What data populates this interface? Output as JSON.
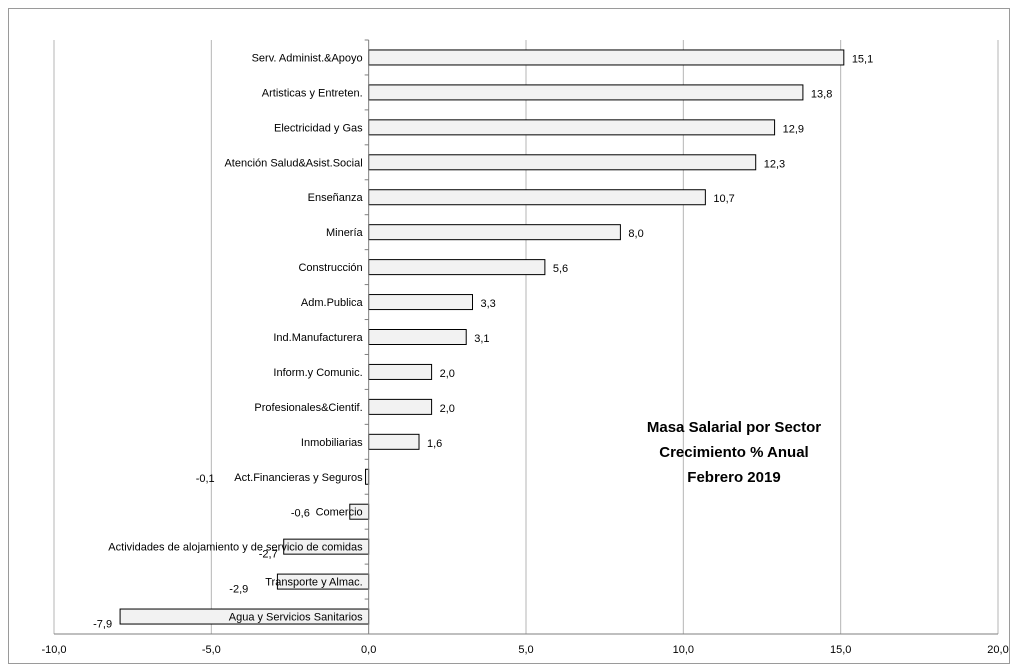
{
  "chart_data": {
    "type": "bar",
    "orientation": "horizontal",
    "title": [
      "Masa Salarial por Sector",
      "Crecimiento % Anual",
      "Febrero 2019"
    ],
    "xlabel": "",
    "ylabel": "",
    "xlim": [
      -10,
      20
    ],
    "x_ticks": [
      "-10,0",
      "-5,0",
      "0,0",
      "5,0",
      "10,0",
      "15,0",
      "20,0"
    ],
    "grid": "vertical",
    "bar_color": "#f2f2f2",
    "bar_edge_color": "#000000",
    "categories": [
      "Serv. Administ.&Apoyo",
      "Artisticas y Entreten.",
      "Electricidad y Gas",
      "Atención Salud&Asist.Social",
      "Enseñanza",
      "Minería",
      "Construcción",
      "Adm.Publica",
      "Ind.Manufacturera",
      "Inform.y Comunic.",
      "Profesionales&Cientif.",
      "Inmobiliarias",
      "Act.Financieras y Seguros",
      "Comercio",
      "Actividades de alojamiento y de servicio de comidas",
      "Transporte y Almac.",
      "Agua y Servicios Sanitarios"
    ],
    "values": [
      15.1,
      13.8,
      12.9,
      12.3,
      10.7,
      8.0,
      5.6,
      3.3,
      3.1,
      2.0,
      2.0,
      1.6,
      -0.1,
      -0.6,
      -2.7,
      -2.9,
      -7.9
    ],
    "value_labels": [
      "15,1",
      "13,8",
      "12,9",
      "12,3",
      "10,7",
      "8,0",
      "5,6",
      "3,3",
      "3,1",
      "2,0",
      "2,0",
      "1,6",
      "-0,1",
      "-0,6",
      "-2,7",
      "-2,9",
      "-7,9"
    ]
  }
}
